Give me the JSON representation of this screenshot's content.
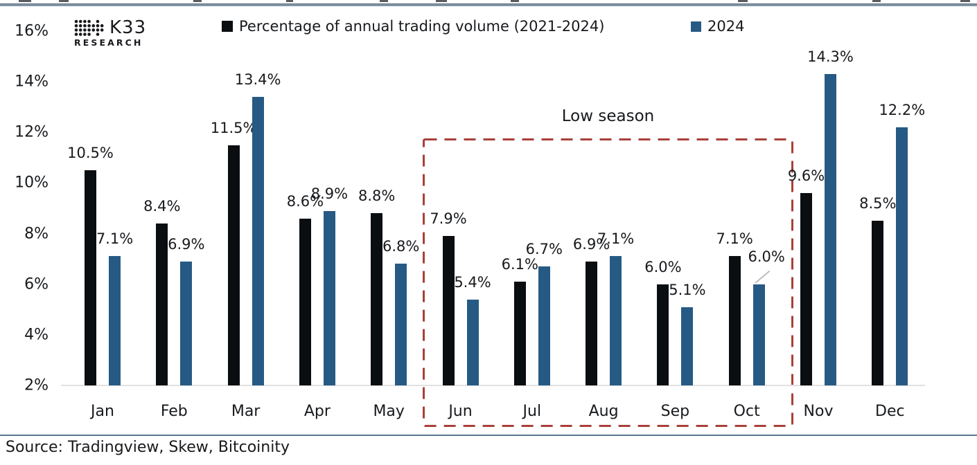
{
  "brand": {
    "name": "K33",
    "sub": "RESEARCH"
  },
  "legend": [
    {
      "label": "Percentage of annual trading volume (2021-2024)",
      "color": "#0b0e11"
    },
    {
      "label": "2024",
      "color": "#265a84"
    }
  ],
  "chart_data": {
    "type": "bar",
    "categories": [
      "Jan",
      "Feb",
      "Mar",
      "Apr",
      "May",
      "Jun",
      "Jul",
      "Aug",
      "Sep",
      "Oct",
      "Nov",
      "Dec"
    ],
    "series": [
      {
        "name": "Percentage of annual trading volume (2021-2024)",
        "color": "#0b0e11",
        "values": [
          10.5,
          8.4,
          11.5,
          8.6,
          8.8,
          7.9,
          6.1,
          6.9,
          6.0,
          7.1,
          9.6,
          8.5
        ],
        "labels": [
          "10.5%",
          "8.4%",
          "11.5%",
          "8.6%",
          "8.8%",
          "7.9%",
          "6.1%",
          "6.9%",
          "6.0%",
          "7.1%",
          "9.6%",
          "8.5%"
        ]
      },
      {
        "name": "2024",
        "color": "#265a84",
        "values": [
          7.1,
          6.9,
          13.4,
          8.9,
          6.8,
          5.4,
          6.7,
          7.1,
          5.1,
          6.0,
          14.3,
          12.2
        ],
        "labels": [
          "7.1%",
          "6.9%",
          "13.4%",
          "8.9%",
          "6.8%",
          "5.4%",
          "6.7%",
          "7.1%",
          "5.1%",
          "6.0%",
          "14.3%",
          "12.2%"
        ]
      }
    ],
    "ylim": [
      2,
      16
    ],
    "yticks": [
      16,
      14,
      12,
      10,
      8,
      6,
      4,
      2
    ],
    "ytick_labels": [
      "16%",
      "14%",
      "12%",
      "10%",
      "8%",
      "6%",
      "4%",
      "2%"
    ],
    "grid": false,
    "legend_position": "top",
    "annotations": {
      "low_season": {
        "label": "Low season",
        "from_month": "Jun",
        "to_month": "Oct"
      },
      "label_leader": {
        "series": 1,
        "index": 9,
        "dx": 11,
        "dy": -15
      }
    }
  },
  "colors": {
    "low_season_box": "#a84038",
    "baseline": "#e1e1e1",
    "top_rule": "#8096a8",
    "bottom_rule": "#56768e",
    "leader_line": "#b9bdc1"
  },
  "source": {
    "text": "Source: Tradingview, Skew, Bitcoinity"
  }
}
